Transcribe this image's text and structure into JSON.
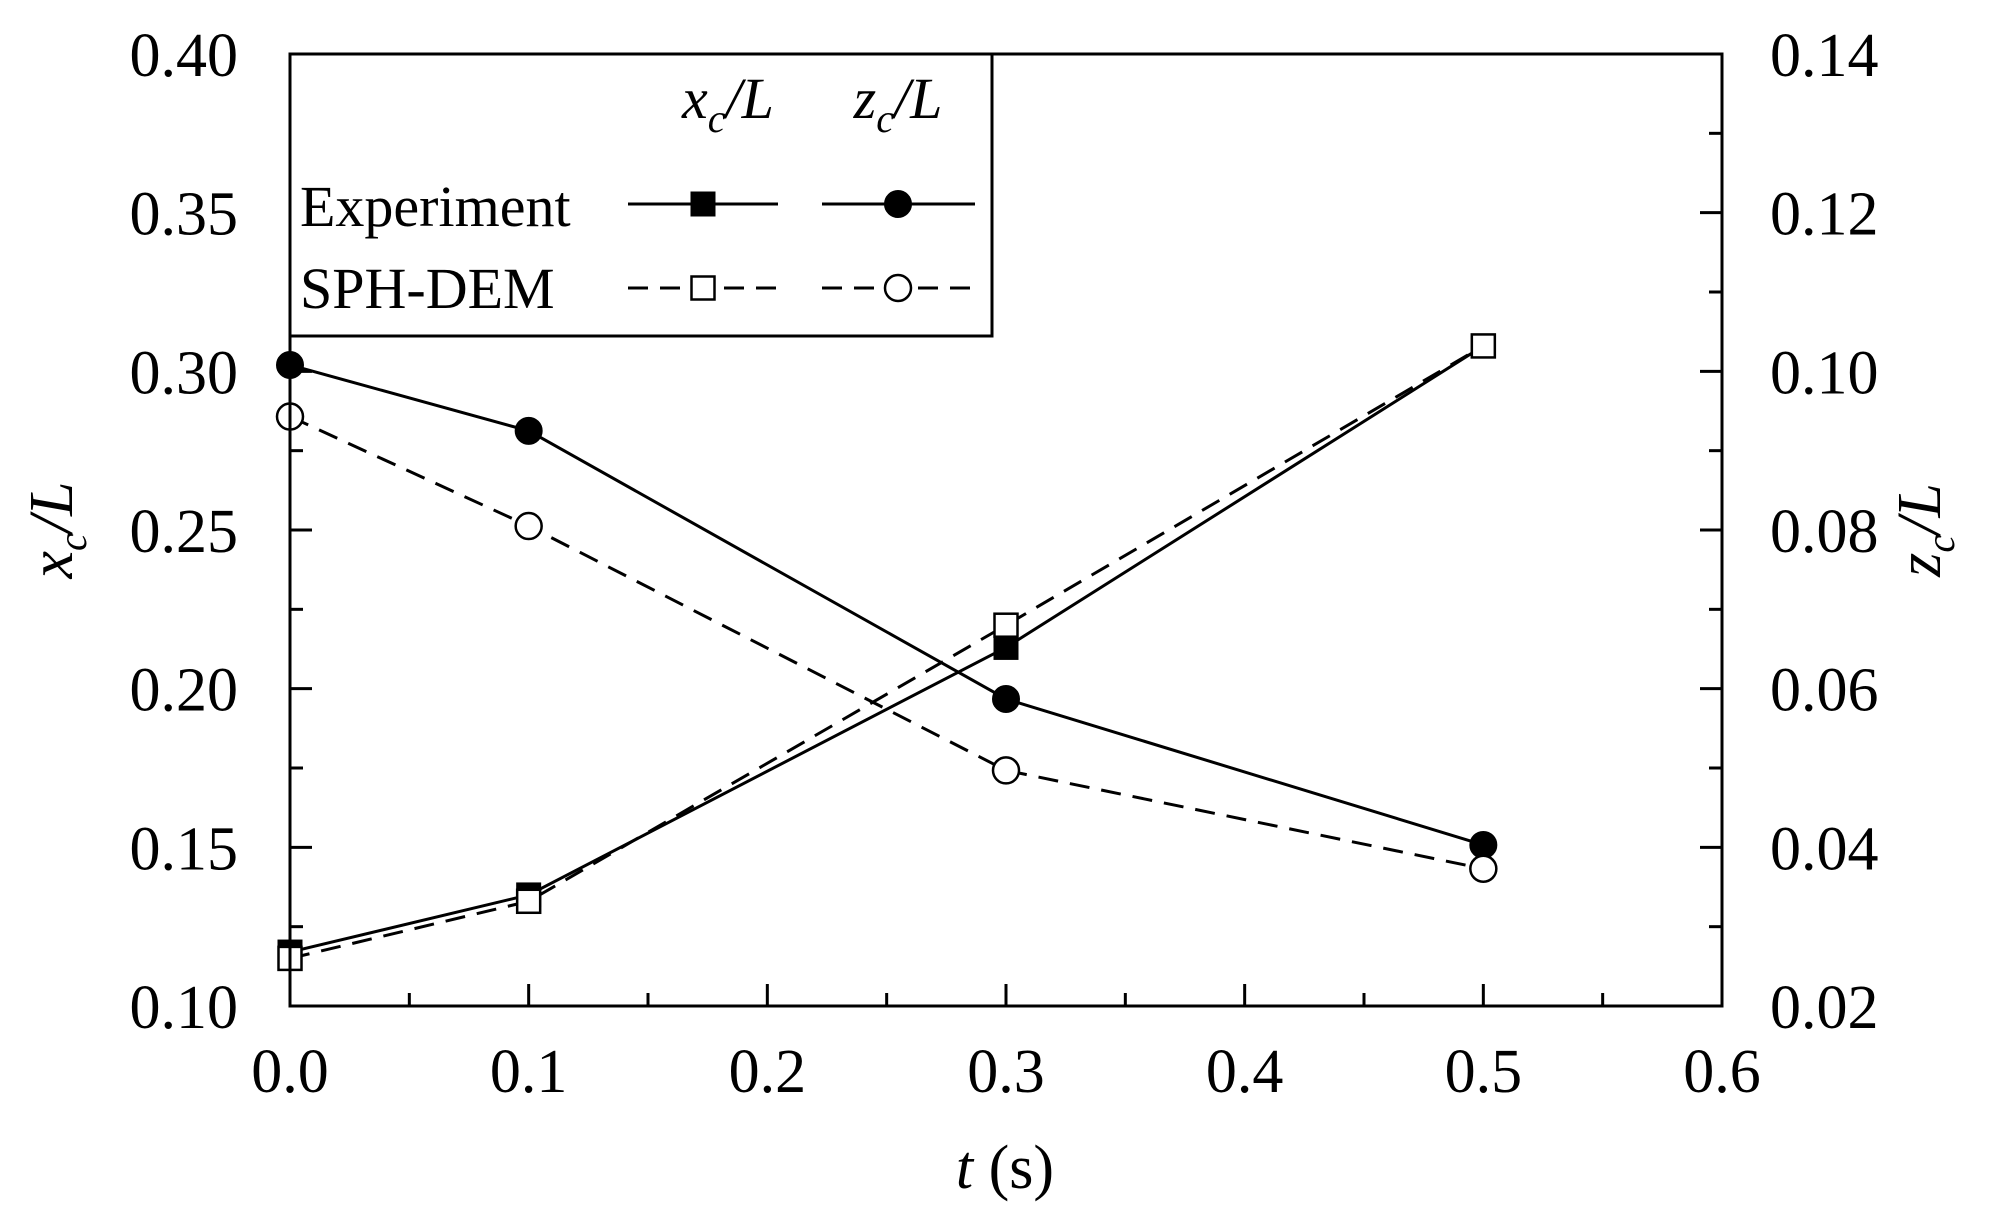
{
  "chart_data": {
    "type": "line",
    "x": [
      0.0,
      0.1,
      0.3,
      0.5
    ],
    "xlim": [
      0.0,
      0.6
    ],
    "ylim_left": [
      0.1,
      0.4
    ],
    "ylim_right": [
      0.02,
      0.14
    ],
    "grid": false,
    "legend_placement": "top-left",
    "x_ticks": [
      "0.0",
      "0.1",
      "0.2",
      "0.3",
      "0.4",
      "0.5",
      "0.6"
    ],
    "y_ticks_left": [
      "0.10",
      "0.15",
      "0.20",
      "0.25",
      "0.30",
      "0.35",
      "0.40"
    ],
    "y_ticks_right": [
      "0.02",
      "0.04",
      "0.06",
      "0.08",
      "0.10",
      "0.12",
      "0.14"
    ],
    "xlabel": {
      "var": "t",
      "unit": "(s)"
    },
    "ylabel_left": {
      "var": "x",
      "sub": "c",
      "rest": "/L"
    },
    "ylabel_right": {
      "var": "z",
      "sub": "c",
      "rest": "/L"
    },
    "legend": {
      "col_headers": [
        {
          "var": "x",
          "sub": "c",
          "rest": "/L"
        },
        {
          "var": "z",
          "sub": "c",
          "rest": "/L"
        }
      ],
      "rows": [
        "Experiment",
        "SPH-DEM"
      ]
    },
    "series": [
      {
        "name": "Experiment",
        "quantity": "x_c/L",
        "axis": "left",
        "marker": "filled-square",
        "line": "solid",
        "values": [
          0.117,
          0.135,
          0.213,
          0.308
        ]
      },
      {
        "name": "SPH-DEM",
        "quantity": "x_c/L",
        "axis": "left",
        "marker": "open-square",
        "line": "dashed",
        "values": [
          0.115,
          0.133,
          0.22,
          0.308
        ]
      },
      {
        "name": "Experiment",
        "quantity": "z_c/L",
        "axis": "right",
        "marker": "filled-circle",
        "line": "solid",
        "values": [
          0.1008,
          0.0925,
          0.0587,
          0.0403
        ]
      },
      {
        "name": "SPH-DEM",
        "quantity": "z_c/L",
        "axis": "right",
        "marker": "open-circle",
        "line": "dashed",
        "values": [
          0.0943,
          0.0805,
          0.0497,
          0.0373
        ]
      }
    ]
  }
}
